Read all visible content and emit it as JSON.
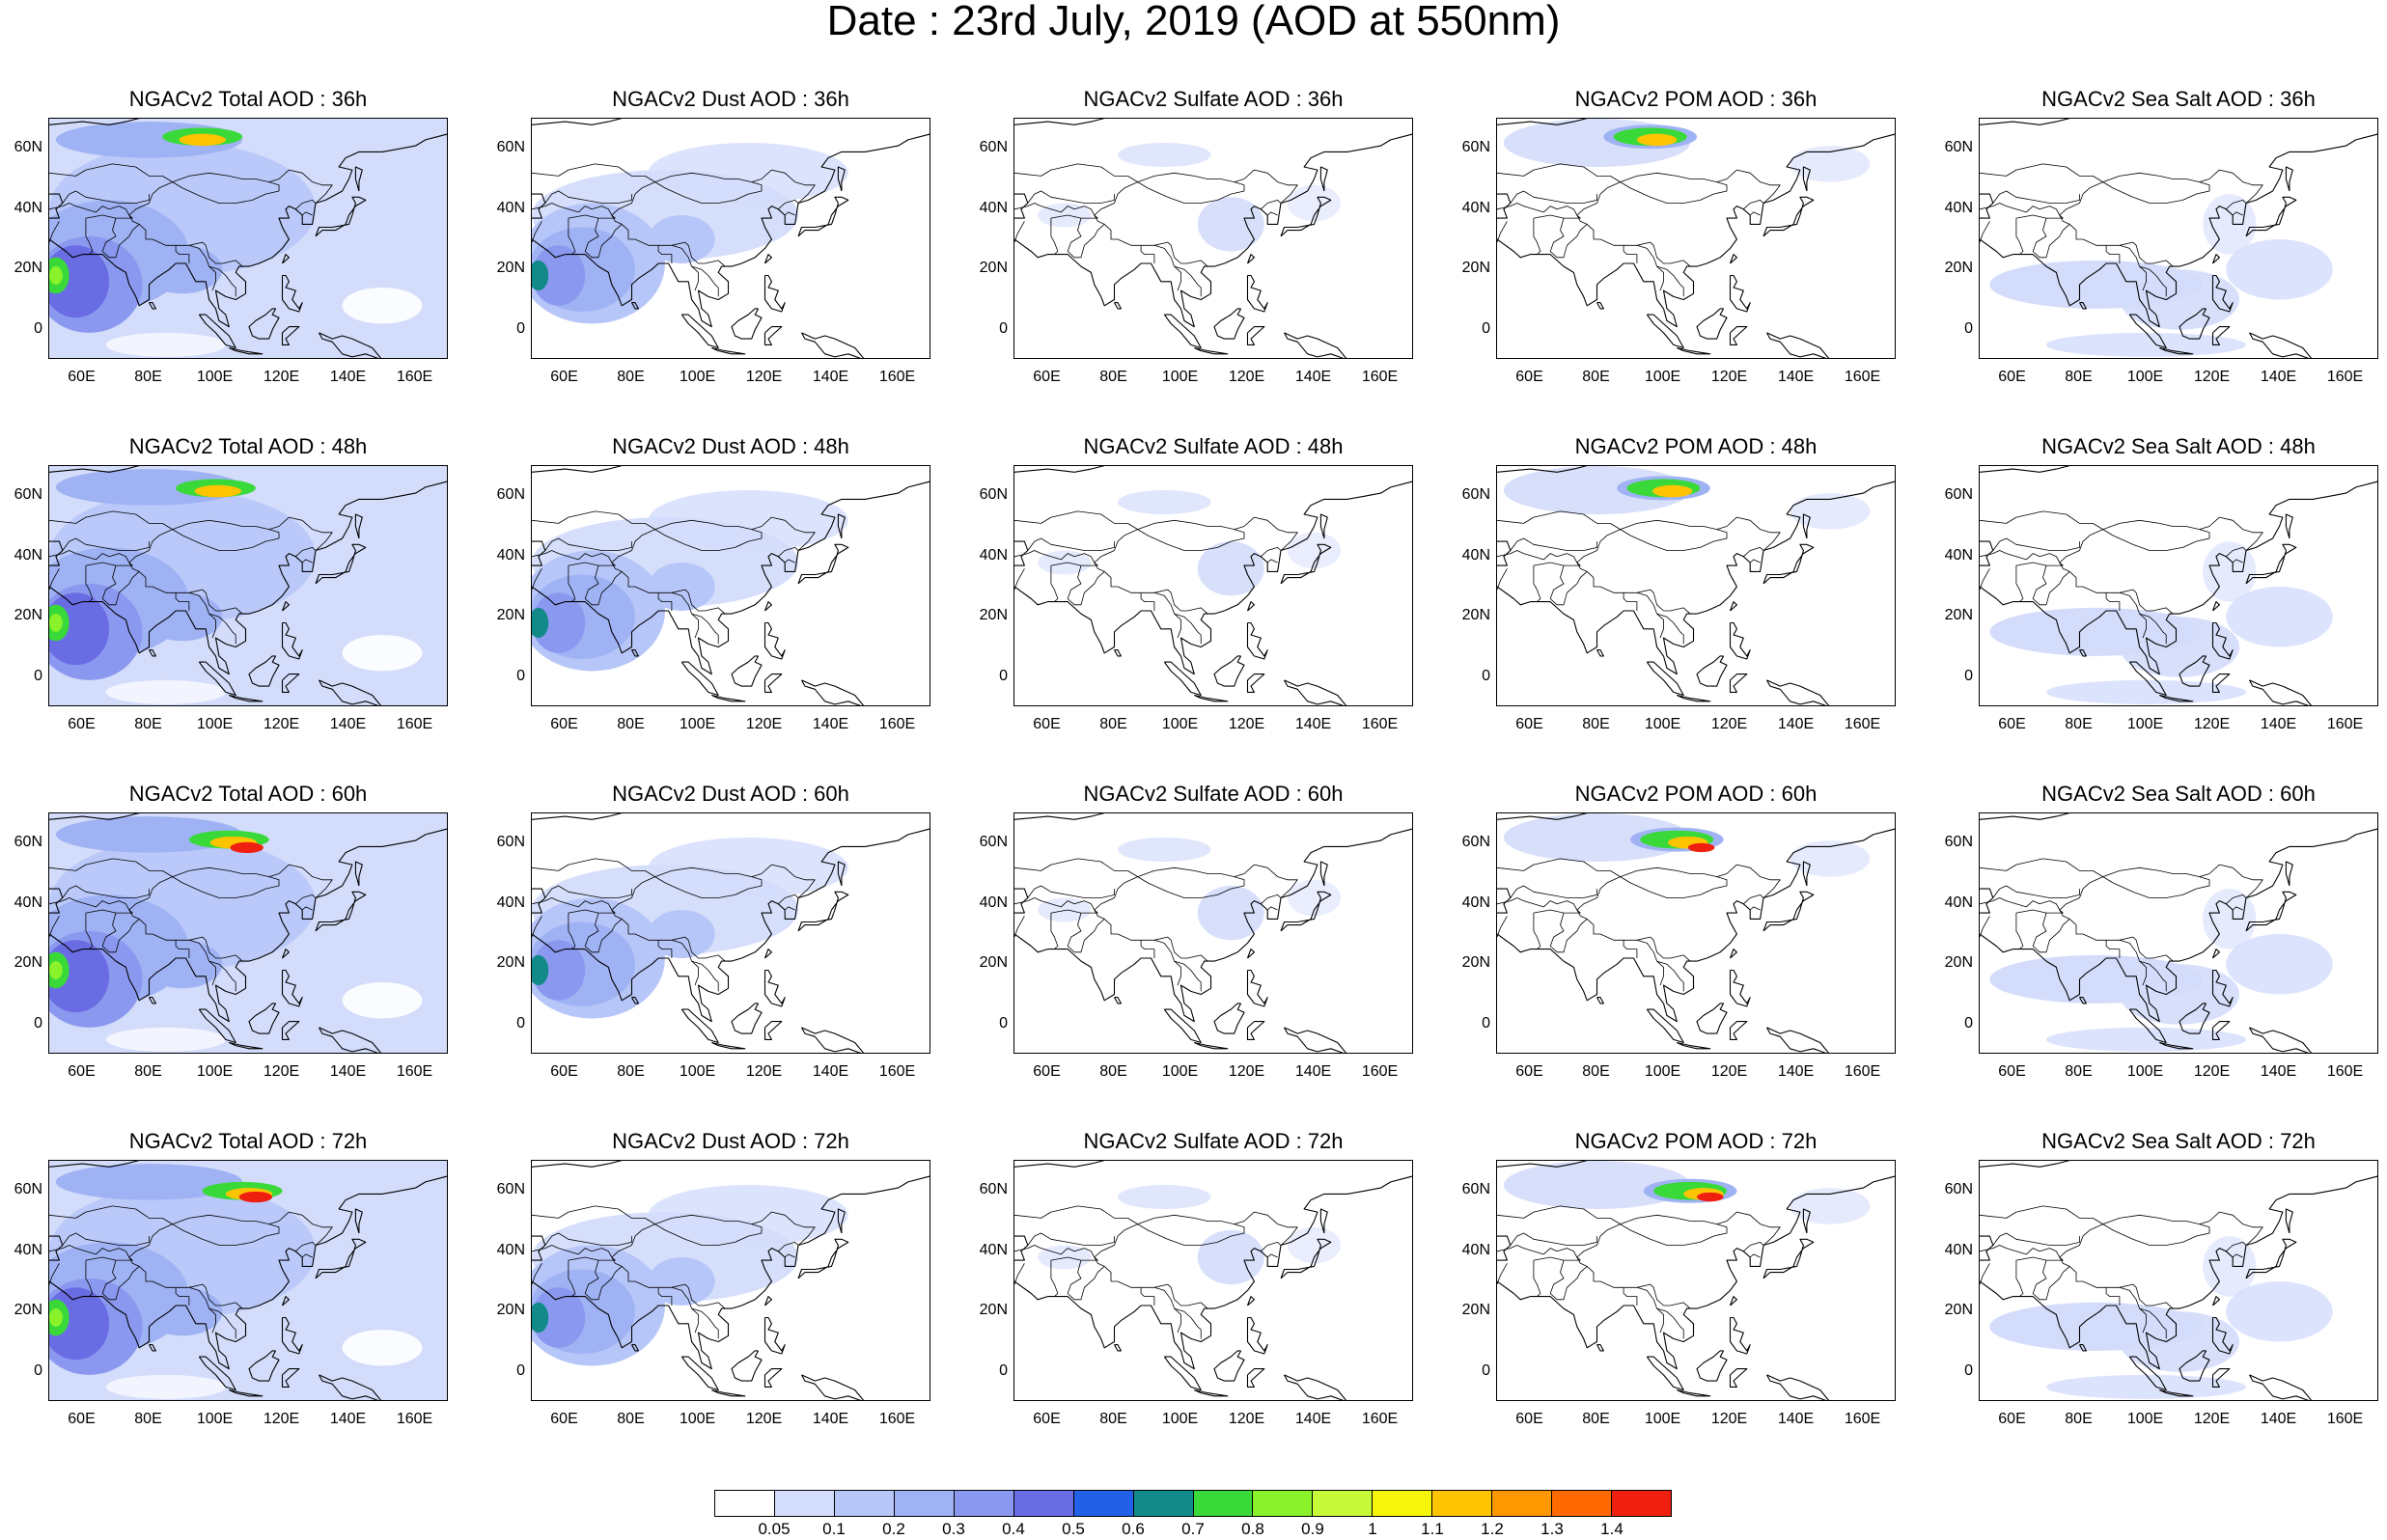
{
  "title": "Date : 23rd July, 2019 (AOD at 550nm)",
  "colors": [
    "#ffffff",
    "#d3dcfb",
    "#b7c6f8",
    "#9fb2f4",
    "#8a99ef",
    "#6a6ce4",
    "#2260e8",
    "#138a8a",
    "#3ad93a",
    "#8af22a",
    "#c7fa38",
    "#f6f60a",
    "#ffc400",
    "#ff9700",
    "#ff6a00",
    "#f02010"
  ],
  "colorbar_labels": [
    "0.05",
    "0.1",
    "0.2",
    "0.3",
    "0.4",
    "0.5",
    "0.6",
    "0.7",
    "0.8",
    "0.9",
    "1",
    "1.1",
    "1.2",
    "1.3",
    "1.4"
  ],
  "y_ticks": [
    "60N",
    "40N",
    "20N",
    "0"
  ],
  "x_ticks": [
    "60E",
    "80E",
    "100E",
    "120E",
    "140E",
    "160E"
  ],
  "panels": [
    {
      "title": "NGACv2 Total AOD : 36h",
      "kind": "total",
      "lead": 36
    },
    {
      "title": "NGACv2 Dust AOD : 36h",
      "kind": "dust",
      "lead": 36
    },
    {
      "title": "NGACv2 Sulfate AOD : 36h",
      "kind": "sulfate",
      "lead": 36
    },
    {
      "title": "NGACv2 POM AOD : 36h",
      "kind": "pom",
      "lead": 36
    },
    {
      "title": "NGACv2 Sea Salt AOD : 36h",
      "kind": "seasalt",
      "lead": 36
    },
    {
      "title": "NGACv2 Total AOD : 48h",
      "kind": "total",
      "lead": 48
    },
    {
      "title": "NGACv2 Dust AOD : 48h",
      "kind": "dust",
      "lead": 48
    },
    {
      "title": "NGACv2 Sulfate AOD : 48h",
      "kind": "sulfate",
      "lead": 48
    },
    {
      "title": "NGACv2 POM AOD : 48h",
      "kind": "pom",
      "lead": 48
    },
    {
      "title": "NGACv2 Sea Salt AOD : 48h",
      "kind": "seasalt",
      "lead": 48
    },
    {
      "title": "NGACv2 Total AOD : 60h",
      "kind": "total",
      "lead": 60
    },
    {
      "title": "NGACv2 Dust AOD : 60h",
      "kind": "dust",
      "lead": 60
    },
    {
      "title": "NGACv2 Sulfate AOD : 60h",
      "kind": "sulfate",
      "lead": 60
    },
    {
      "title": "NGACv2 POM AOD : 60h",
      "kind": "pom",
      "lead": 60
    },
    {
      "title": "NGACv2 Sea Salt AOD : 60h",
      "kind": "seasalt",
      "lead": 60
    },
    {
      "title": "NGACv2 Total AOD : 72h",
      "kind": "total",
      "lead": 72
    },
    {
      "title": "NGACv2 Dust AOD : 72h",
      "kind": "dust",
      "lead": 72
    },
    {
      "title": "NGACv2 Sulfate AOD : 72h",
      "kind": "sulfate",
      "lead": 72
    },
    {
      "title": "NGACv2 POM AOD : 72h",
      "kind": "pom",
      "lead": 72
    },
    {
      "title": "NGACv2 Sea Salt  AOD : 72h",
      "kind": "seasalt",
      "lead": 72
    }
  ]
}
